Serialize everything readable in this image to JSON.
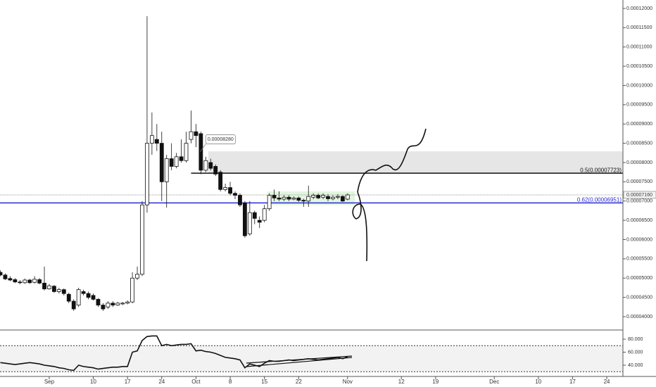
{
  "chart_data": [
    {
      "type": "candlestick",
      "x": [
        -10,
        -9,
        -8,
        -7,
        -6,
        -5,
        -4,
        -3,
        -2,
        -1,
        0,
        1,
        2,
        3,
        4,
        5,
        6,
        7,
        8,
        9,
        10,
        11,
        12,
        13,
        14,
        15,
        16,
        17,
        18,
        19,
        20,
        21,
        22,
        23,
        24,
        25,
        26,
        27,
        28,
        29,
        30,
        31,
        32,
        33,
        34,
        35,
        36,
        37,
        38,
        39,
        40,
        41,
        42,
        43,
        44,
        45,
        46,
        47,
        48,
        49,
        50,
        51,
        52,
        53,
        54,
        55,
        56,
        57,
        58,
        59,
        60,
        61
      ],
      "open": [
        5.15e-05,
        5.08e-05,
        4.99e-05,
        4.96e-05,
        4.9e-05,
        4.88e-05,
        4.95e-05,
        4.89e-05,
        4.96e-05,
        4.87e-05,
        4.72e-05,
        4.79e-05,
        4.65e-05,
        4.7e-05,
        4.58e-05,
        4.4e-05,
        4.3e-05,
        4.65e-05,
        4.6e-05,
        4.55e-05,
        4.45e-05,
        4.3e-05,
        4.25e-05,
        4.35e-05,
        4.3e-05,
        4.33e-05,
        4.35e-05,
        4.38e-05,
        5e-05,
        5.1e-05,
        6.9e-05,
        8.5e-05,
        8.6e-05,
        8.5e-05,
        7.5e-05,
        8.1e-05,
        7.9e-05,
        8.15e-05,
        8.05e-05,
        8.6e-05,
        8.8e-05,
        8.75e-05,
        7.8e-05,
        8e-05,
        7.9e-05,
        7.75e-05,
        7.3e-05,
        7.35e-05,
        7.2e-05,
        7.15e-05,
        6.95e-05,
        6.15e-05,
        6.7e-05,
        6.5e-05,
        6.5e-05,
        6.8e-05,
        7.15e-05,
        7.08e-05,
        7.05e-05,
        7.1e-05,
        7.05e-05,
        7.08e-05,
        7.02e-05,
        7e-05,
        7.1e-05,
        7.15e-05,
        7.1e-05,
        7.12e-05,
        7.06e-05,
        7.1e-05,
        7.12e-05,
        7.05e-05
      ],
      "close": [
        5.08e-05,
        4.98e-05,
        4.95e-05,
        4.9e-05,
        4.88e-05,
        4.95e-05,
        4.88e-05,
        4.97e-05,
        4.87e-05,
        4.72e-05,
        4.8e-05,
        4.65e-05,
        4.7e-05,
        4.6e-05,
        4.4e-05,
        4.2e-05,
        4.7e-05,
        4.6e-05,
        4.5e-05,
        4.45e-05,
        4.3e-05,
        4.2e-05,
        4.35e-05,
        4.3e-05,
        4.35e-05,
        4.35e-05,
        4.38e-05,
        5e-05,
        5.1e-05,
        6.9e-05,
        8.5e-05,
        8.7e-05,
        8.5e-05,
        7.5e-05,
        8.1e-05,
        7.9e-05,
        8.15e-05,
        8.05e-05,
        8.5e-05,
        8.8e-05,
        8.7e-05,
        7.8e-05,
        8.05e-05,
        7.85e-05,
        7.7e-05,
        7.3e-05,
        7.35e-05,
        7.2e-05,
        7.15e-05,
        6.9e-05,
        6.1e-05,
        6.7e-05,
        6.55e-05,
        6.45e-05,
        6.8e-05,
        7.15e-05,
        7.08e-05,
        7.05e-05,
        7.1e-05,
        7.05e-05,
        7.08e-05,
        7.02e-05,
        7e-05,
        7.12e-05,
        7.15e-05,
        7.08e-05,
        7.15e-05,
        7.06e-05,
        7.1e-05,
        7.12e-05,
        7e-05,
        7.16e-05
      ],
      "high": [
        5.2e-05,
        5.12e-05,
        5.05e-05,
        5e-05,
        4.95e-05,
        4.99e-05,
        4.98e-05,
        5.05e-05,
        5e-05,
        5.3e-05,
        4.85e-05,
        4.82e-05,
        4.75e-05,
        4.73e-05,
        4.62e-05,
        4.45e-05,
        4.75e-05,
        4.7e-05,
        4.65e-05,
        4.6e-05,
        4.48e-05,
        4.35e-05,
        4.4e-05,
        4.4e-05,
        4.38e-05,
        4.38e-05,
        4.42e-05,
        5.15e-05,
        5.3e-05,
        7e-05,
        0.000118,
        9.3e-05,
        9e-05,
        8.8e-05,
        8.2e-05,
        8.5e-05,
        8.25e-05,
        8.6e-05,
        8.8e-05,
        9.35e-05,
        9e-05,
        8.8e-05,
        8.15e-05,
        8.1e-05,
        7.95e-05,
        7.8e-05,
        7.45e-05,
        7.5e-05,
        7.25e-05,
        7.2e-05,
        7e-05,
        7e-05,
        6.75e-05,
        6.6e-05,
        6.9e-05,
        7.2e-05,
        7.3e-05,
        7.25e-05,
        7.15e-05,
        7.15e-05,
        7.12e-05,
        7.12e-05,
        7.06e-05,
        7.4e-05,
        7.2e-05,
        7.2e-05,
        7.2e-05,
        7.18e-05,
        7.15e-05,
        7.18e-05,
        7.15e-05,
        7.2e-05
      ],
      "low": [
        5.05e-05,
        4.95e-05,
        4.92e-05,
        4.87e-05,
        4.84e-05,
        4.85e-05,
        4.85e-05,
        4.86e-05,
        4.84e-05,
        4.68e-05,
        4.7e-05,
        4.62e-05,
        4.6e-05,
        4.55e-05,
        4.35e-05,
        4.15e-05,
        4.25e-05,
        4.55e-05,
        4.45e-05,
        4.42e-05,
        4.25e-05,
        4.15e-05,
        4.2e-05,
        4.25e-05,
        4.28e-05,
        4.3e-05,
        4.32e-05,
        4.35e-05,
        4.95e-05,
        5.05e-05,
        6.7e-05,
        8.2e-05,
        8.3e-05,
        7e-05,
        6.83e-05,
        7.8e-05,
        7.85e-05,
        8e-05,
        8e-05,
        8.5e-05,
        8.4e-05,
        7.7e-05,
        7.75e-05,
        7.8e-05,
        7.65e-05,
        7.25e-05,
        7.25e-05,
        7.15e-05,
        7.05e-05,
        6.85e-05,
        6.05e-05,
        6.1e-05,
        6.4e-05,
        6.3e-05,
        6.45e-05,
        6.75e-05,
        7e-05,
        7e-05,
        7e-05,
        7e-05,
        7.02e-05,
        6.98e-05,
        6.85e-05,
        6.85e-05,
        7.05e-05,
        7.05e-05,
        7.05e-05,
        7e-05,
        7.02e-05,
        7.05e-05,
        6.98e-05,
        7.02e-05
      ],
      "xlim": [
        -10.07,
        117.3
      ],
      "xticks": [
        {
          "value": 0,
          "label": "Sep"
        },
        {
          "value": 9,
          "label": "10"
        },
        {
          "value": 16,
          "label": "17"
        },
        {
          "value": 23,
          "label": "24"
        },
        {
          "value": 30,
          "label": "Oct"
        },
        {
          "value": 37,
          "label": "8"
        },
        {
          "value": 44,
          "label": "15"
        },
        {
          "value": 51,
          "label": "22"
        },
        {
          "value": 61,
          "label": "Nov"
        },
        {
          "value": 72,
          "label": "12"
        },
        {
          "value": 79,
          "label": "19"
        },
        {
          "value": 91,
          "label": "Dec"
        },
        {
          "value": 100,
          "label": "10"
        },
        {
          "value": 107,
          "label": "17"
        },
        {
          "value": 114,
          "label": "24"
        }
      ],
      "ylim": [
        3.671e-05,
        0.00012219
      ],
      "yticks": [
        {
          "value": 0.00012,
          "label": "0.00012000"
        },
        {
          "value": 0.000115,
          "label": "0.00011500"
        },
        {
          "value": 0.00011,
          "label": "0.00011000"
        },
        {
          "value": 0.000105,
          "label": "0.00010500"
        },
        {
          "value": 0.0001,
          "label": "0.00010000"
        },
        {
          "value": 9.5e-05,
          "label": "0.00009500"
        },
        {
          "value": 9e-05,
          "label": "0.00009000"
        },
        {
          "value": 8.5e-05,
          "label": "0.00008500"
        },
        {
          "value": 8e-05,
          "label": "0.00008000"
        },
        {
          "value": 7.5e-05,
          "label": "0.00007500"
        },
        {
          "value": 7e-05,
          "label": "0.00007000"
        },
        {
          "value": 6.5e-05,
          "label": "0.00006500"
        },
        {
          "value": 6e-05,
          "label": "0.00006000"
        },
        {
          "value": 5.5e-05,
          "label": "0.00005500"
        },
        {
          "value": 5e-05,
          "label": "0.00005000"
        },
        {
          "value": 4.5e-05,
          "label": "0.00004500"
        },
        {
          "value": 4e-05,
          "label": "0.00004000"
        }
      ],
      "zones": [
        {
          "low": 7.72e-05,
          "high": 8.29e-05,
          "start": 32.5,
          "end": 117.3,
          "color": "#e6e6e6"
        },
        {
          "low": 6.9e-05,
          "high": 7.25e-05,
          "start": 44.6,
          "end": 62.5,
          "color": "#e2f5df"
        }
      ],
      "levels": [
        {
          "label": "0.5(0.00007723)",
          "value": 7.723e-05,
          "start": 29,
          "color": "#111111"
        },
        {
          "label": "0.62(0.00006951)",
          "value": 6.951e-05,
          "start": -10.07,
          "color": "#2b2bd6"
        }
      ],
      "last_price": {
        "label": "0.00007160",
        "value": 7.16e-05
      },
      "callout": {
        "label": "0.00008280",
        "value": 8.28e-05,
        "x": 32
      }
    },
    {
      "type": "line",
      "x": [
        -10,
        -9,
        -8,
        -7,
        -6,
        -5,
        -4,
        -3,
        -2,
        -1,
        0,
        1,
        2,
        3,
        4,
        5,
        6,
        7,
        8,
        9,
        10,
        11,
        12,
        13,
        14,
        15,
        16,
        17,
        18,
        19,
        20,
        21,
        22,
        23,
        24,
        25,
        26,
        27,
        28,
        29,
        30,
        31,
        32,
        33,
        34,
        35,
        36,
        37,
        38,
        39,
        40,
        41,
        42,
        43,
        44,
        45,
        46,
        47,
        48,
        49,
        50,
        51,
        52,
        53,
        54,
        55,
        56,
        57,
        58,
        59,
        60,
        61
      ],
      "values": [
        44,
        43,
        42,
        41,
        42,
        43,
        44,
        43,
        42,
        40,
        39,
        38,
        36,
        35,
        33,
        32,
        40,
        38,
        37,
        36,
        34,
        35,
        36,
        37,
        37,
        38,
        38,
        60,
        62,
        78,
        84,
        85,
        85,
        70,
        72,
        70,
        71,
        72,
        72,
        73,
        62,
        63,
        61,
        60,
        58,
        55,
        52,
        51,
        50,
        48,
        36,
        42,
        40,
        38,
        43,
        47,
        46,
        46,
        47,
        48,
        47,
        48,
        49,
        50,
        49,
        48,
        49,
        50,
        51,
        52,
        50,
        53
      ],
      "color": "#111111",
      "ylim": [
        22.7,
        93
      ],
      "yticks": [
        {
          "value": 80,
          "label": "80.000"
        },
        {
          "value": 60,
          "label": "60.000"
        },
        {
          "value": 40,
          "label": "40.000"
        }
      ],
      "bands": [
        70,
        30
      ]
    }
  ]
}
